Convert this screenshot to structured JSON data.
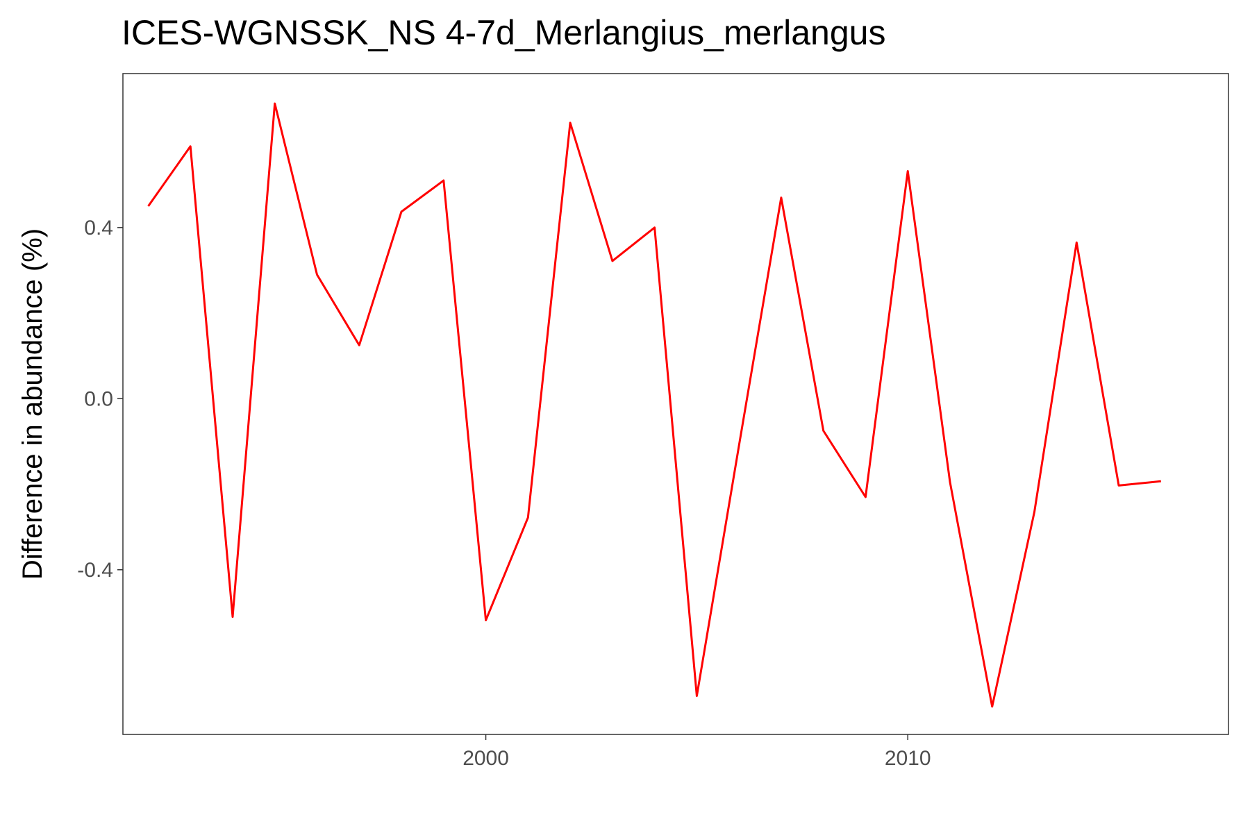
{
  "chart_data": {
    "type": "line",
    "title": "ICES-WGNSSK_NS 4-7d_Merlangius_merlangus",
    "xlabel": "",
    "ylabel": "Difference in abundance (%)",
    "xlim": [
      1991.4,
      2017.6
    ],
    "ylim": [
      -0.785,
      0.76
    ],
    "x_ticks": [
      2000,
      2010
    ],
    "x_tick_labels": [
      "2000",
      "2010"
    ],
    "y_ticks": [
      -0.4,
      0.0,
      0.4
    ],
    "y_tick_labels": [
      "-0.4",
      "0.0",
      "0.4"
    ],
    "grid": false,
    "series": [
      {
        "color": "#FF0000",
        "x": [
          1992,
          1993,
          1994,
          1995,
          1996,
          1997,
          1998,
          1999,
          2000,
          2001,
          2002,
          2003,
          2004,
          2005,
          2006,
          2007,
          2008,
          2009,
          2010,
          2011,
          2012,
          2013,
          2014,
          2015,
          2016
        ],
        "y": [
          0.45,
          0.59,
          -0.51,
          0.69,
          0.29,
          0.125,
          0.437,
          0.51,
          -0.518,
          -0.278,
          0.645,
          0.322,
          0.4,
          -0.695,
          -0.11,
          0.47,
          -0.075,
          -0.23,
          0.532,
          -0.195,
          -0.72,
          -0.265,
          0.365,
          -0.203,
          -0.193
        ]
      }
    ]
  }
}
